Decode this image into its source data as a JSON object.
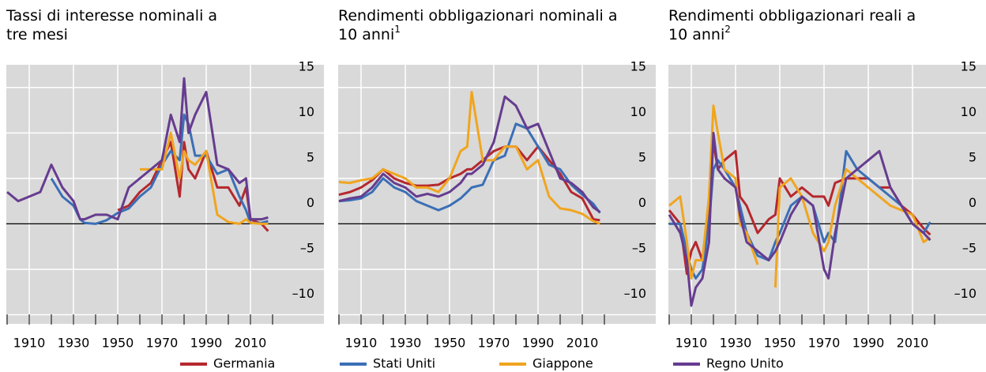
{
  "chart_data": [
    {
      "type": "line",
      "title_lines": [
        "Tassi di interesse nominali a",
        "tre mesi"
      ],
      "x": [
        1900,
        1905,
        1910,
        1915,
        1920,
        1925,
        1930,
        1933,
        1935,
        1940,
        1945,
        1950,
        1955,
        1960,
        1965,
        1970,
        1974,
        1978,
        1980,
        1982,
        1985,
        1990,
        1995,
        2000,
        2005,
        2008,
        2010,
        2015,
        2018
      ],
      "series": [
        {
          "name": "Germania",
          "color": "#b5282e",
          "values": [
            null,
            null,
            null,
            null,
            null,
            null,
            null,
            null,
            null,
            null,
            null,
            1.5,
            2,
            3.5,
            4.5,
            7,
            9,
            3,
            9,
            6,
            5,
            8,
            4,
            4,
            2,
            4,
            0.5,
            0,
            -0.8
          ]
        },
        {
          "name": "Stati Uniti",
          "color": "#3b6fb6",
          "values": [
            null,
            null,
            null,
            null,
            5,
            3,
            2,
            0.5,
            0.1,
            0,
            0.4,
            1.2,
            1.7,
            3,
            4,
            6.5,
            8,
            7,
            12,
            11,
            7.5,
            7.5,
            5.5,
            6,
            3,
            1.5,
            0.1,
            0.1,
            0.3
          ]
        },
        {
          "name": "Giappone",
          "color": "#f0a51f",
          "values": [
            null,
            null,
            null,
            null,
            null,
            null,
            null,
            null,
            null,
            null,
            null,
            null,
            null,
            6,
            6,
            6,
            10,
            5,
            8,
            7,
            6.5,
            8,
            1,
            0.2,
            0,
            0.5,
            0.1,
            0,
            0
          ]
        },
        {
          "name": "Regno Unito",
          "color": "#663c8f",
          "values": [
            3.5,
            2.5,
            3,
            3.5,
            6.5,
            4,
            2.5,
            0.5,
            0.5,
            1,
            1,
            0.5,
            4,
            5,
            6,
            7,
            12,
            9,
            16,
            10,
            12,
            14.5,
            6.5,
            6,
            4.5,
            5,
            0.5,
            0.5,
            0.7
          ]
        }
      ],
      "xlim": [
        1900,
        2020
      ],
      "xticks": [
        1910,
        1930,
        1950,
        1970,
        1990,
        2010
      ],
      "xminor_ticks": [
        1900,
        1920,
        1940,
        1960,
        1980,
        2000,
        2020
      ],
      "ylim": [
        -11,
        17.5
      ],
      "yticks": [
        {
          "value": -10,
          "label": "–10"
        },
        {
          "value": -5,
          "label": "–5"
        },
        0,
        5,
        10,
        15
      ],
      "grid": true
    },
    {
      "type": "line",
      "title_lines": [
        "Rendimenti obbligazionari nominali a",
        "10 anni"
      ],
      "footnote": "1",
      "x": [
        1900,
        1905,
        1910,
        1915,
        1920,
        1925,
        1930,
        1935,
        1940,
        1945,
        1950,
        1955,
        1958,
        1960,
        1965,
        1970,
        1975,
        1980,
        1985,
        1990,
        1995,
        2000,
        2005,
        2010,
        2015,
        2018
      ],
      "series": [
        {
          "name": "Germania",
          "color": "#b5282e",
          "values": [
            3.2,
            3.5,
            4,
            4.8,
            6,
            5,
            4.5,
            4.2,
            4.2,
            4.3,
            5,
            5.5,
            6,
            6,
            7,
            8,
            8.5,
            8.5,
            7,
            8.5,
            7,
            5.5,
            3.5,
            2.8,
            0.5,
            0.4
          ]
        },
        {
          "name": "Stati Uniti",
          "color": "#3b6fb6",
          "values": [
            2.5,
            2.6,
            2.8,
            3.5,
            5,
            4,
            3.5,
            2.5,
            2,
            1.5,
            2,
            2.8,
            3.5,
            4,
            4.3,
            7,
            7.5,
            11,
            10.5,
            8.5,
            6.5,
            6,
            4.3,
            3.2,
            2.2,
            1.2
          ]
        },
        {
          "name": "Giappone",
          "color": "#f0a51f",
          "values": [
            4.6,
            4.5,
            4.8,
            5,
            6,
            5.5,
            5,
            4,
            4,
            3.5,
            5,
            8,
            8.5,
            14.5,
            7,
            7,
            8.5,
            8.5,
            6,
            7,
            3,
            1.7,
            1.5,
            1.1,
            0.3,
            0
          ]
        },
        {
          "name": "Regno Unito",
          "color": "#663c8f",
          "values": [
            2.5,
            2.8,
            3,
            4,
            5.5,
            4.5,
            4,
            3,
            3.3,
            3,
            3.5,
            4.5,
            5.5,
            5.5,
            6.5,
            9,
            14,
            13,
            10.5,
            11,
            8,
            5,
            4.5,
            3.5,
            1.8,
            1.3
          ]
        }
      ],
      "xlim": [
        1900,
        2020
      ],
      "xticks": [
        1910,
        1930,
        1950,
        1970,
        1990,
        2010
      ],
      "xminor_ticks": [
        1900,
        1920,
        1940,
        1960,
        1980,
        2000,
        2020
      ],
      "ylim": [
        -11,
        17.5
      ],
      "yticks": [
        {
          "value": -10,
          "label": "–10"
        },
        {
          "value": -5,
          "label": "–5"
        },
        0,
        5,
        10,
        15
      ],
      "grid": true
    },
    {
      "type": "line",
      "title_lines": [
        "Rendimenti obbligazionari reali a",
        "10 anni"
      ],
      "footnote": "2",
      "x": [
        1900,
        1905,
        1908,
        1910,
        1912,
        1915,
        1918,
        1920,
        1922,
        1925,
        1930,
        1932,
        1935,
        1940,
        1945,
        1948,
        1950,
        1955,
        1960,
        1965,
        1970,
        1972,
        1975,
        1980,
        1985,
        1990,
        1995,
        2000,
        2005,
        2010,
        2015,
        2018
      ],
      "series": [
        {
          "name": "Germania",
          "color": "#b5282e",
          "values": [
            1.5,
            0,
            -5.5,
            -3,
            -2,
            -4,
            2,
            9,
            6,
            7,
            8,
            3,
            2,
            -1,
            0.5,
            1,
            5,
            3,
            4,
            3,
            3,
            2,
            4.5,
            5,
            5,
            5,
            4,
            4,
            2,
            1,
            -0.5,
            -1.2
          ]
        },
        {
          "name": "Stati Uniti",
          "color": "#3b6fb6",
          "values": [
            0,
            0,
            -3,
            -5,
            -6,
            -5,
            0,
            6,
            7,
            6,
            4,
            2,
            -1,
            -3.5,
            -4,
            -2,
            -1,
            2,
            3,
            2,
            -2,
            -1,
            -2,
            8,
            6,
            5,
            4,
            3,
            2,
            0,
            -1,
            0.2
          ]
        },
        {
          "name": "Giappone",
          "color": "#f0a51f",
          "values": [
            2,
            3,
            -2,
            -6,
            -4,
            -4,
            3,
            13,
            10,
            6,
            5,
            0,
            -1,
            -4.5,
            null,
            -7,
            4,
            5,
            3,
            -1,
            -3,
            -2,
            2,
            6,
            5,
            4,
            3,
            2,
            1.5,
            1,
            -2,
            -1.5
          ]
        },
        {
          "name": "Regno Unito",
          "color": "#663c8f",
          "values": [
            1,
            -1,
            -4,
            -9,
            -7,
            -6,
            -2,
            10,
            6,
            5,
            4,
            1,
            -2,
            -3,
            -4,
            -3,
            -2,
            1,
            3,
            2,
            -5,
            -6,
            -1,
            5,
            6,
            7,
            8,
            4,
            2,
            0,
            -1,
            -1.8
          ]
        }
      ],
      "xlim": [
        1900,
        2020
      ],
      "xticks": [
        1910,
        1930,
        1950,
        1970,
        1990,
        2010
      ],
      "xminor_ticks": [
        1900,
        1920,
        1940,
        1960,
        1980,
        2000,
        2020
      ],
      "ylim": [
        -11,
        17.5
      ],
      "yticks": [
        {
          "value": -10,
          "label": "–10"
        },
        {
          "value": -5,
          "label": "–5"
        },
        0,
        5,
        10,
        15
      ],
      "grid": true
    }
  ]
}
